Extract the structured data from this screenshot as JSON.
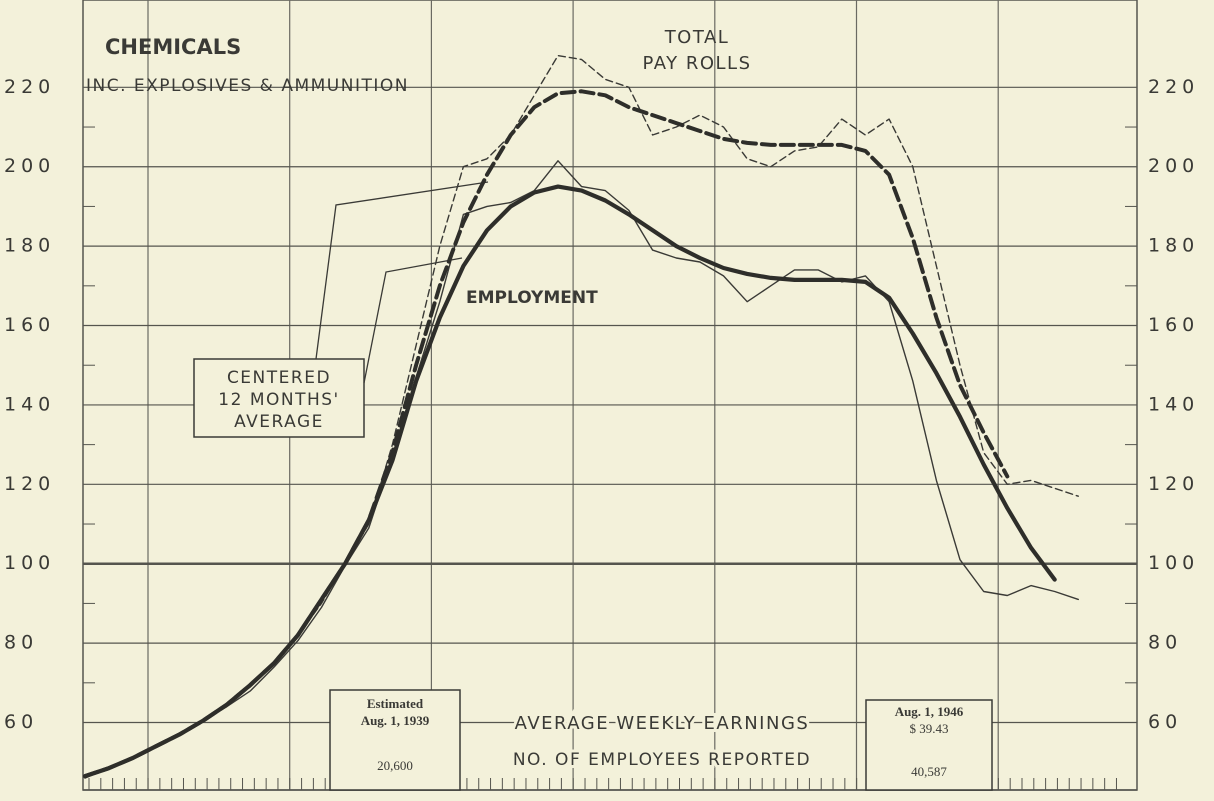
{
  "chart_data": {
    "type": "line",
    "title": "CHEMICALS",
    "subtitle": "INC. EXPLOSIVES & AMMUNITION",
    "ylim": [
      43,
      242
    ],
    "yticks": [
      60,
      80,
      100,
      120,
      140,
      160,
      180,
      200,
      220
    ],
    "grid": true,
    "series": [
      {
        "color": "#3a3a36",
        "style": "thin-solid",
        "values": [
          46.6,
          48.4,
          51,
          54,
          57,
          60.5,
          64,
          68,
          74,
          80.6,
          89,
          99.5,
          109,
          127,
          147,
          166,
          188,
          190,
          191,
          194,
          201.5,
          195,
          194,
          189,
          179,
          177,
          176,
          172.5,
          166,
          170,
          174,
          174,
          171,
          172.5,
          166,
          146,
          121,
          101,
          93,
          92,
          94.5,
          93,
          91
        ]
      },
      {
        "color": "#3a3a36",
        "style": "thin-dashed",
        "values": [
          46,
          48.5,
          51,
          54,
          57,
          60.5,
          64.5,
          69,
          75,
          82,
          90,
          100,
          110,
          130,
          155,
          180,
          200,
          202,
          208,
          218,
          228,
          227,
          222,
          220,
          208,
          210,
          213,
          210,
          202,
          200,
          204,
          205,
          212,
          208,
          212,
          200,
          175,
          150,
          128,
          120,
          121,
          119,
          117
        ]
      },
      {
        "name": "EMPLOYMENT",
        "color": "#2e2e2a",
        "style": "thick-solid",
        "values": [
          46.5,
          48.5,
          51,
          54,
          57,
          60.5,
          64.5,
          69.5,
          75,
          82,
          91,
          100,
          111,
          126,
          146,
          162,
          175,
          184,
          190,
          193.5,
          195,
          194,
          191.5,
          188,
          184,
          180,
          177,
          174.5,
          173,
          172,
          171.5,
          171.5,
          171.5,
          171,
          167,
          158,
          148,
          137,
          125,
          114,
          104,
          96,
          null
        ]
      },
      {
        "name": "TOTAL PAY ROLLS",
        "color": "#2e2e2a",
        "style": "thick-dashed",
        "values": [
          46.5,
          48.5,
          51,
          54,
          57,
          60.5,
          64.5,
          69.5,
          75,
          82,
          91,
          100,
          111,
          128,
          150,
          170,
          186,
          198,
          208,
          215,
          218.5,
          219,
          218,
          215,
          213,
          211,
          209,
          207,
          206,
          205.5,
          205.5,
          205.5,
          205.5,
          204,
          198,
          182,
          162,
          145,
          133,
          122,
          null,
          null,
          null
        ]
      }
    ],
    "annotations": {
      "average": [
        "CENTERED",
        "12 MONTHS'",
        "AVERAGE"
      ],
      "box_1939": [
        "Estimated",
        "Aug. 1, 1939",
        "20,600"
      ],
      "box_1946": [
        "Aug. 1, 1946",
        "$ 39.43",
        "40,587"
      ],
      "earnings": "AVERAGE WEEKLY EARNINGS",
      "employees": "NO. OF EMPLOYEES REPORTED"
    }
  }
}
